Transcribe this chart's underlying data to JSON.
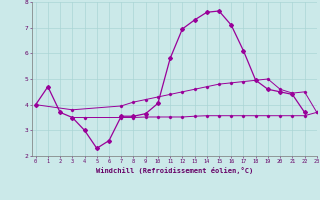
{
  "xlabel": "Windchill (Refroidissement éolien,°C)",
  "background_color": "#cbe9e9",
  "line_color": "#990099",
  "grid_color": "#aad5d5",
  "x_values": [
    0,
    1,
    2,
    3,
    4,
    5,
    6,
    7,
    8,
    9,
    10,
    11,
    12,
    13,
    14,
    15,
    16,
    17,
    18,
    19,
    20,
    21,
    22,
    23
  ],
  "line1_y": [
    4.0,
    4.7,
    3.7,
    3.5,
    3.0,
    2.3,
    2.6,
    3.55,
    3.55,
    3.65,
    4.05,
    5.8,
    6.95,
    7.3,
    7.6,
    7.65,
    7.1,
    6.1,
    4.95,
    4.6,
    4.5,
    4.4,
    3.7,
    null
  ],
  "line2_y": [
    4.0,
    null,
    null,
    3.8,
    null,
    null,
    null,
    3.95,
    4.1,
    4.2,
    4.3,
    4.4,
    4.5,
    4.6,
    4.7,
    4.8,
    4.85,
    4.9,
    4.95,
    5.0,
    4.6,
    4.45,
    4.5,
    3.7
  ],
  "line3_y": [
    null,
    null,
    null,
    3.5,
    3.5,
    null,
    null,
    3.5,
    3.5,
    3.52,
    3.52,
    3.52,
    3.52,
    3.55,
    3.57,
    3.57,
    3.57,
    3.57,
    3.57,
    3.57,
    3.57,
    3.57,
    3.57,
    3.7
  ],
  "ylim": [
    2,
    8
  ],
  "xlim": [
    -0.3,
    23
  ],
  "yticks": [
    2,
    3,
    4,
    5,
    6,
    7,
    8
  ]
}
